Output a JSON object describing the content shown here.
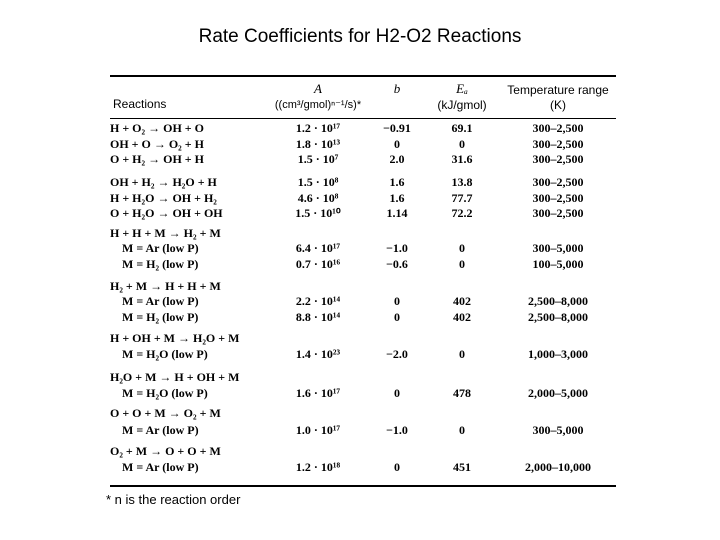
{
  "header": {
    "title": "Rate Coefficients for H2-O2 Reactions"
  },
  "table": {
    "columns": {
      "reactions": "Reactions",
      "a": "A",
      "a_unit": "((cm³/gmol)ⁿ⁻¹/s)*",
      "b": "b",
      "ea": "Eₐ",
      "ea_unit": "(kJ/gmol)",
      "temp": "Temperature range",
      "temp_unit": "(K)"
    },
    "rows": [
      [
        "H + O₂ → OH + O",
        "1.2 · 10¹⁷",
        "−0.91",
        "69.1",
        "300–2,500"
      ],
      [
        "OH + O → O₂ + H",
        "1.8 · 10¹³",
        "0",
        "0",
        "300–2,500"
      ],
      [
        "O + H₂ → OH + H",
        "1.5 · 10⁷",
        "2.0",
        "31.6",
        "300–2,500"
      ],
      [
        "OH + H₂ → H₂O + H",
        "1.5 · 10⁸",
        "1.6",
        "13.8",
        "300–2,500"
      ],
      [
        "H + H₂O → OH + H₂",
        "4.6 · 10⁸",
        "1.6",
        "77.7",
        "300–2,500"
      ],
      [
        "O + H₂O → OH + OH",
        "1.5 · 10¹⁰",
        "1.14",
        "72.2",
        "300–2,500"
      ],
      [
        "H + H + M → H₂ + M"
      ],
      [
        "M = Ar (low P)",
        "6.4 · 10¹⁷",
        "−1.0",
        "0",
        "300–5,000"
      ],
      [
        "M = H₂ (low P)",
        "0.7 · 10¹⁶",
        "−0.6",
        "0",
        "100–5,000"
      ],
      [
        "H₂ + M → H + H + M"
      ],
      [
        "M = Ar (low P)",
        "2.2 · 10¹⁴",
        "0",
        "402",
        "2,500–8,000"
      ],
      [
        "M = H₂ (low P)",
        "8.8 · 10¹⁴",
        "0",
        "402",
        "2,500–8,000"
      ],
      [
        "H + OH + M → H₂O + M"
      ],
      [
        "M = H₂O (low P)",
        "1.4 · 10²³",
        "−2.0",
        "0",
        "1,000–3,000"
      ],
      [
        "H₂O + M → H + OH + M"
      ],
      [
        "M = H₂O (low P)",
        "1.6 · 10¹⁷",
        "0",
        "478",
        "2,000–5,000"
      ],
      [
        "O + O + M → O₂ + M"
      ],
      [
        "M = Ar (low P)",
        "1.0 · 10¹⁷",
        "−1.0",
        "0",
        "300–5,000"
      ],
      [
        "O₂ + M → O + O + M"
      ],
      [
        "M = Ar (low P)",
        "1.2 · 10¹⁸",
        "0",
        "451",
        "2,000–10,000"
      ]
    ]
  },
  "footnote": "* n is the reaction order"
}
